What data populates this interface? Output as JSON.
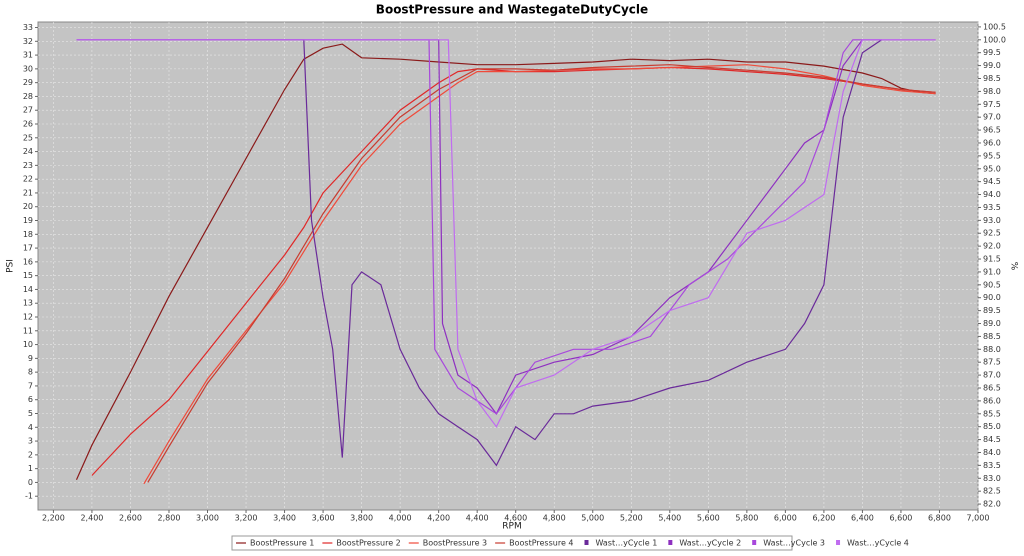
{
  "chart_data": {
    "type": "line",
    "title": "BoostPressure and WastegateDutyCycle",
    "x_label": "RPM",
    "y_label": "PSI",
    "y2_label": "%",
    "grid": true,
    "legend": "bottom",
    "xlim": [
      2120,
      7000
    ],
    "xticks": [
      {
        "value": 2200,
        "label": "2,200"
      },
      {
        "value": 2400,
        "label": "2,400"
      },
      {
        "value": 2600,
        "label": "2,600"
      },
      {
        "value": 2800,
        "label": "2,800"
      },
      {
        "value": 3000,
        "label": "3,000"
      },
      {
        "value": 3200,
        "label": "3,200"
      },
      {
        "value": 3400,
        "label": "3,400"
      },
      {
        "value": 3600,
        "label": "3,600"
      },
      {
        "value": 3800,
        "label": "3,800"
      },
      {
        "value": 4000,
        "label": "4,000"
      },
      {
        "value": 4200,
        "label": "4,200"
      },
      {
        "value": 4400,
        "label": "4,400"
      },
      {
        "value": 4600,
        "label": "4,600"
      },
      {
        "value": 4800,
        "label": "4,800"
      },
      {
        "value": 5000,
        "label": "5,000"
      },
      {
        "value": 5200,
        "label": "5,200"
      },
      {
        "value": 5400,
        "label": "5,400"
      },
      {
        "value": 5600,
        "label": "5,600"
      },
      {
        "value": 5800,
        "label": "5,800"
      },
      {
        "value": 6000,
        "label": "6,000"
      },
      {
        "value": 6200,
        "label": "6,200"
      },
      {
        "value": 6400,
        "label": "6,400"
      },
      {
        "value": 6600,
        "label": "6,600"
      },
      {
        "value": 6800,
        "label": "6,800"
      },
      {
        "value": 7000,
        "label": "7,000"
      }
    ],
    "ylim": [
      -2,
      33.4
    ],
    "yticks": [
      -1,
      0,
      1,
      2,
      3,
      4,
      5,
      6,
      7,
      8,
      9,
      10,
      11,
      12,
      13,
      14,
      15,
      16,
      17,
      18,
      19,
      20,
      21,
      22,
      23,
      24,
      25,
      26,
      27,
      28,
      29,
      30,
      31,
      32,
      33
    ],
    "y2lim": [
      81.77,
      100.69
    ],
    "y2ticks": [
      {
        "value": 82,
        "label": "82.0"
      },
      {
        "value": 82.5,
        "label": "82.5"
      },
      {
        "value": 83,
        "label": "83.0"
      },
      {
        "value": 83.5,
        "label": "83.5"
      },
      {
        "value": 84,
        "label": "84.0"
      },
      {
        "value": 84.5,
        "label": "84.5"
      },
      {
        "value": 85,
        "label": "85.0"
      },
      {
        "value": 85.5,
        "label": "85.5"
      },
      {
        "value": 86,
        "label": "86.0"
      },
      {
        "value": 86.5,
        "label": "86.5"
      },
      {
        "value": 87,
        "label": "87.0"
      },
      {
        "value": 87.5,
        "label": "87.5"
      },
      {
        "value": 88,
        "label": "88.0"
      },
      {
        "value": 88.5,
        "label": "88.5"
      },
      {
        "value": 89,
        "label": "89.0"
      },
      {
        "value": 89.5,
        "label": "89.5"
      },
      {
        "value": 90,
        "label": "90.0"
      },
      {
        "value": 90.5,
        "label": "90.5"
      },
      {
        "value": 91,
        "label": "91.0"
      },
      {
        "value": 91.5,
        "label": "91.5"
      },
      {
        "value": 92,
        "label": "92.0"
      },
      {
        "value": 92.5,
        "label": "92.5"
      },
      {
        "value": 93,
        "label": "93.0"
      },
      {
        "value": 93.5,
        "label": "93.5"
      },
      {
        "value": 94,
        "label": "94.0"
      },
      {
        "value": 94.5,
        "label": "94.5"
      },
      {
        "value": 95,
        "label": "95.0"
      },
      {
        "value": 95.5,
        "label": "95.5"
      },
      {
        "value": 96,
        "label": "96.0"
      },
      {
        "value": 96.5,
        "label": "96.5"
      },
      {
        "value": 97,
        "label": "97.0"
      },
      {
        "value": 97.5,
        "label": "97.5"
      },
      {
        "value": 98,
        "label": "98.0"
      },
      {
        "value": 98.5,
        "label": "98.5"
      },
      {
        "value": 99,
        "label": "99.0"
      },
      {
        "value": 99.5,
        "label": "99.5"
      },
      {
        "value": 100,
        "label": "100.0"
      },
      {
        "value": 100.5,
        "label": "100.5"
      }
    ],
    "series": [
      {
        "name": "BoostPressure 1",
        "color": "#8b1a1a",
        "axis": "y",
        "x": [
          2320,
          2400,
          2600,
          2800,
          3000,
          3200,
          3400,
          3500,
          3600,
          3700,
          3800,
          4000,
          4200,
          4400,
          4600,
          4800,
          5000,
          5200,
          5400,
          5600,
          5800,
          6000,
          6200,
          6400,
          6500,
          6600,
          6700,
          6780
        ],
        "values": [
          0.2,
          2.7,
          8,
          13.5,
          18.5,
          23.5,
          28.5,
          30.7,
          31.5,
          31.8,
          30.8,
          30.7,
          30.5,
          30.3,
          30.3,
          30.4,
          30.5,
          30.7,
          30.6,
          30.7,
          30.5,
          30.5,
          30.2,
          29.7,
          29.3,
          28.6,
          28.3,
          28.2
        ]
      },
      {
        "name": "BoostPressure 2",
        "color": "#e02828",
        "axis": "y",
        "x": [
          2400,
          2600,
          2800,
          3000,
          3200,
          3400,
          3500,
          3600,
          3800,
          4000,
          4200,
          4300,
          4400,
          4600,
          4800,
          5000,
          5200,
          5400,
          5600,
          5800,
          6000,
          6200,
          6400,
          6600,
          6780
        ],
        "values": [
          0.5,
          3.5,
          6,
          9.5,
          13,
          16.5,
          18.5,
          21,
          24,
          27,
          29,
          29.8,
          30,
          29.8,
          29.8,
          29.9,
          30,
          30.1,
          30,
          29.8,
          29.6,
          29.3,
          28.9,
          28.5,
          28.3
        ]
      },
      {
        "name": "BoostPressure 3",
        "color": "#f04a3a",
        "axis": "y",
        "x": [
          2670,
          2800,
          3000,
          3200,
          3400,
          3600,
          3800,
          4000,
          4200,
          4300,
          4400,
          4600,
          4800,
          5000,
          5200,
          5400,
          5600,
          5800,
          6000,
          6200,
          6400,
          6600,
          6780
        ],
        "values": [
          -0.1,
          3,
          7.5,
          11,
          14.5,
          19,
          23,
          26,
          28,
          29,
          29.8,
          29.8,
          29.9,
          30,
          30,
          30.1,
          30.2,
          30.3,
          30,
          29.5,
          28.8,
          28.4,
          28.2
        ]
      },
      {
        "name": "BoostPressure 4",
        "color": "#c83c30",
        "axis": "y",
        "x": [
          2690,
          2800,
          3000,
          3200,
          3400,
          3600,
          3800,
          4000,
          4200,
          4400,
          4600,
          4800,
          5000,
          5200,
          5400,
          5600,
          5800,
          6000,
          6200,
          6400,
          6600,
          6780
        ],
        "values": [
          0,
          2.6,
          7.2,
          10.8,
          14.8,
          19.5,
          23.5,
          26.5,
          28.5,
          30,
          30,
          29.9,
          30.1,
          30.2,
          30.3,
          30.1,
          29.9,
          29.7,
          29.4,
          28.9,
          28.5,
          28.3
        ]
      },
      {
        "name": "Wast…yCycle 1",
        "color": "#6a2a9a",
        "axis": "y2",
        "x": [
          2320,
          3500,
          3540,
          3600,
          3650,
          3700,
          3750,
          3800,
          3900,
          4000,
          4100,
          4200,
          4300,
          4400,
          4500,
          4600,
          4700,
          4800,
          4900,
          5000,
          5200,
          5400,
          5600,
          5800,
          6000,
          6100,
          6200,
          6300,
          6400,
          6500
        ],
        "values": [
          100,
          100,
          93,
          90,
          88,
          83.8,
          90.5,
          91,
          90.5,
          88,
          86.5,
          85.5,
          85,
          84.5,
          83.5,
          85,
          84.5,
          85.5,
          85.5,
          85.8,
          86,
          86.5,
          86.8,
          87.5,
          88,
          89,
          90.5,
          97,
          99.5,
          100
        ]
      },
      {
        "name": "Wast…yCycle 2",
        "color": "#8e30c0",
        "axis": "y2",
        "x": [
          2320,
          4200,
          4220,
          4300,
          4400,
          4500,
          4600,
          4800,
          5000,
          5200,
          5400,
          5600,
          5800,
          6000,
          6100,
          6200,
          6300,
          6400,
          6500
        ],
        "values": [
          100,
          100,
          89,
          87,
          86.5,
          85.5,
          87,
          87.5,
          87.8,
          88.5,
          90,
          91,
          93,
          95,
          96,
          96.5,
          99,
          100,
          100
        ]
      },
      {
        "name": "Wast…yCycle 3",
        "color": "#a848dc",
        "axis": "y2",
        "x": [
          2320,
          4150,
          4180,
          4300,
          4500,
          4700,
          4900,
          5100,
          5300,
          5500,
          5700,
          5900,
          6100,
          6200,
          6300,
          6350,
          6780
        ],
        "values": [
          100,
          100,
          88,
          86.5,
          85.5,
          87.5,
          88,
          88,
          88.5,
          90.5,
          91.5,
          93,
          94.5,
          96.5,
          99.5,
          100,
          100
        ]
      },
      {
        "name": "Wast…yCycle 4",
        "color": "#c06cf0",
        "axis": "y2",
        "x": [
          2320,
          4250,
          4300,
          4400,
          4500,
          4600,
          4800,
          5000,
          5200,
          5400,
          5600,
          5800,
          6000,
          6200,
          6300,
          6400,
          6780
        ],
        "values": [
          100,
          100,
          88,
          86,
          85,
          86.5,
          87,
          88,
          88.5,
          89.5,
          90,
          92.5,
          93,
          94,
          98,
          100,
          100
        ]
      }
    ]
  }
}
